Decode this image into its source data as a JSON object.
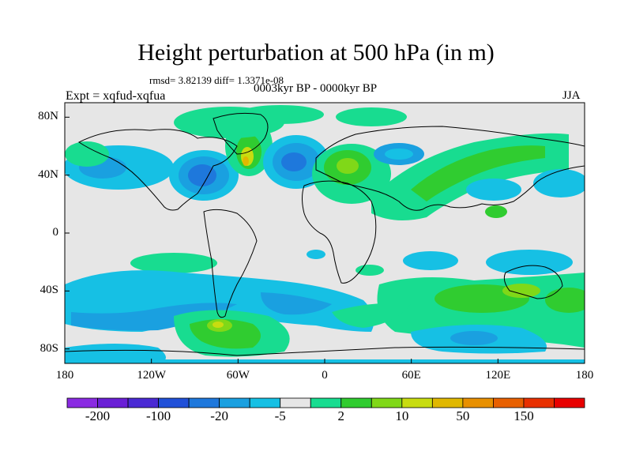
{
  "title": "Height perturbation at 500 hPa (in m)",
  "stats": "rmsd= 3.82139 diff= 1.3371e-08",
  "experiment": "Expt = xqfud-xqfua",
  "period": "0003kyr BP - 0000kyr BP",
  "season": "JJA",
  "map": {
    "lon_range": [
      -180,
      180
    ],
    "lat_range": [
      -90,
      90
    ],
    "lat_labels": [
      "80N",
      "40N",
      "0",
      "40S",
      "80S"
    ],
    "lat_values": [
      80,
      40,
      0,
      -40,
      -80
    ],
    "lon_labels": [
      "180",
      "120W",
      "60W",
      "0",
      "60E",
      "120E",
      "180"
    ],
    "lon_values": [
      -180,
      -120,
      -60,
      0,
      60,
      120,
      180
    ],
    "background_color": "#e6e6e6"
  },
  "colorbar": {
    "colors": [
      "#8a2be2",
      "#6a1fd6",
      "#4a2ad4",
      "#2050d8",
      "#1e78dc",
      "#1aa0e0",
      "#16c0e4",
      "#e6e6e6",
      "#18dc90",
      "#30cc30",
      "#80d818",
      "#c8dc10",
      "#e0b800",
      "#e89000",
      "#e86000",
      "#e83000",
      "#e80000"
    ],
    "labels": [
      "-200",
      "-100",
      "-20",
      "-5",
      "2",
      "10",
      "50",
      "150"
    ]
  }
}
